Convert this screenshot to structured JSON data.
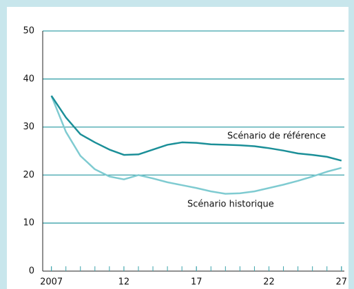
{
  "chart_data": {
    "type": "line",
    "x": [
      2007,
      2008,
      2009,
      2010,
      2011,
      2012,
      2013,
      2014,
      2015,
      2016,
      2017,
      2018,
      2019,
      2020,
      2021,
      2022,
      2023,
      2024,
      2025,
      2026,
      2027
    ],
    "series": [
      {
        "name": "Scénario de référence",
        "color": "#1b8f98",
        "values": [
          36.5,
          32,
          28.5,
          26.8,
          25.3,
          24.2,
          24.3,
          25.3,
          26.3,
          26.8,
          26.7,
          26.4,
          26.3,
          26.2,
          26,
          25.6,
          25.1,
          24.5,
          24.2,
          23.8,
          23
        ]
      },
      {
        "name": "Scénario historique",
        "color": "#7fcbd1",
        "values": [
          36.5,
          29,
          24,
          21.2,
          19.7,
          19.1,
          20,
          19.3,
          18.5,
          17.9,
          17.3,
          16.6,
          16.1,
          16.2,
          16.6,
          17.3,
          18,
          18.8,
          19.7,
          20.7,
          21.5
        ]
      }
    ],
    "xlim": [
      2006.4,
      2027.2
    ],
    "xticks": [
      {
        "value": 2007,
        "label": "2007"
      },
      {
        "value": 2012,
        "label": "12"
      },
      {
        "value": 2017,
        "label": "17"
      },
      {
        "value": 2022,
        "label": "22"
      },
      {
        "value": 2027,
        "label": "27"
      }
    ],
    "ylim": [
      0,
      50
    ],
    "yticks": [
      0,
      10,
      20,
      30,
      40,
      50
    ],
    "grid": true
  }
}
